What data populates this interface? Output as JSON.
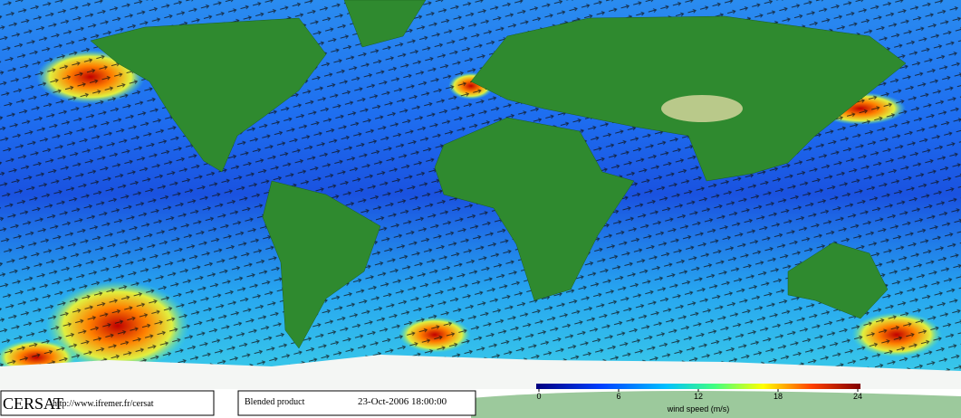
{
  "footer": {
    "logo": "CERSAT",
    "url": "http://www.ifremer.fr/cersat",
    "product": "Blended product",
    "timestamp": "23-Oct-2006 18:00:00"
  },
  "colorbar": {
    "label": "wind speed (m/s)",
    "lim": [
      0,
      24
    ],
    "ticks": [
      0,
      6,
      12,
      18,
      24
    ]
  }
}
